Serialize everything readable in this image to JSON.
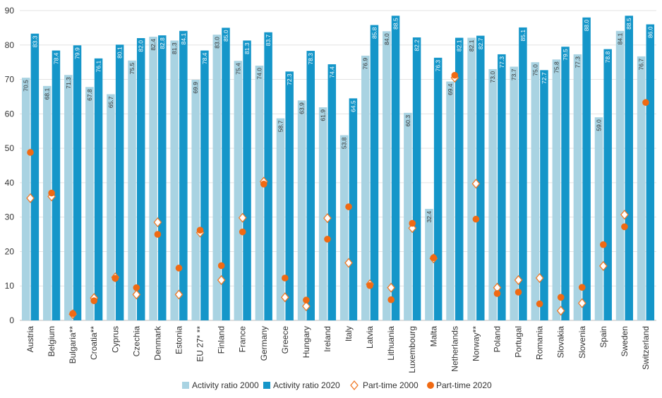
{
  "chart_data": {
    "type": "bar",
    "categories": [
      "Austria",
      "Belgium",
      "Bulgaria**",
      "Croatia**",
      "Cyprus",
      "Czechia",
      "Denmark",
      "Estonia",
      "EU 27* **",
      "Finland",
      "France",
      "Germany",
      "Greece",
      "Hungary",
      "Ireland",
      "Italy",
      "Latvia",
      "Lithuania",
      "Luxembourg",
      "Malta",
      "Netherlands",
      "Norway**",
      "Poland",
      "Portugal",
      "Romania",
      "Slovakia",
      "Slovenia",
      "Spain",
      "Sweden",
      "Switzerland"
    ],
    "series": [
      {
        "name": "Activity ratio 2000",
        "kind": "bar",
        "color": "#a9d3e2",
        "values": [
          70.5,
          68.1,
          71.3,
          67.8,
          65.7,
          75.5,
          82.4,
          81.3,
          69.9,
          83.0,
          75.4,
          74.0,
          58.7,
          63.9,
          61.9,
          53.8,
          76.9,
          84.0,
          60.3,
          32.4,
          69.4,
          82.1,
          73.0,
          73.7,
          75.0,
          75.8,
          77.3,
          59.0,
          84.1,
          76.7
        ],
        "labels": [
          "70.5",
          "68.1",
          "71.3",
          "67.8",
          "65.7",
          "75.5",
          "82.4",
          "81.3",
          "69.9",
          "83.0",
          "75.4",
          "74.0",
          "58.7",
          "63.9",
          "61.9",
          "53.8",
          "76.9",
          "84.0",
          "60.3",
          "32.4",
          "69.4",
          "82.1",
          "73.0",
          "73.7",
          "75.0",
          "75.8",
          "77.3",
          "59.0",
          "84.1",
          "76.7"
        ]
      },
      {
        "name": "Activity ratio 2020",
        "kind": "bar",
        "color": "#1596c9",
        "values": [
          83.3,
          78.4,
          79.9,
          76.1,
          80.1,
          82.0,
          82.8,
          84.1,
          78.4,
          85.0,
          81.3,
          83.7,
          72.3,
          78.3,
          74.4,
          64.5,
          85.8,
          88.5,
          82.2,
          76.3,
          82.1,
          82.7,
          77.3,
          85.1,
          72.7,
          79.5,
          88.0,
          78.8,
          88.5,
          86.0
        ],
        "labels": [
          "83.3",
          "78.4",
          "79.9",
          "76.1",
          "80.1",
          "82.0",
          "82.8",
          "84.1",
          "78.4",
          "85.0",
          "81.3",
          "83.7",
          "72.3",
          "78.3",
          "74.4",
          "64.5",
          "85.8",
          "88.5",
          "82.2",
          "76.3",
          "82.1",
          "82.7",
          "77.3",
          "85.1",
          "72.7",
          "79.5",
          "88.0",
          "78.8",
          "88.5",
          "86.0"
        ]
      },
      {
        "name": "Part-time 2000",
        "kind": "marker",
        "marker": "diamond",
        "color": "#f07a28",
        "values": [
          35.5,
          36.0,
          1.8,
          6.5,
          12.5,
          7.5,
          28.5,
          7.5,
          25.5,
          11.7,
          29.8,
          40.3,
          6.7,
          4.1,
          29.7,
          16.7,
          10.5,
          9.5,
          26.8,
          18.0,
          70.5,
          39.7,
          9.5,
          11.7,
          12.3,
          2.8,
          5.0,
          15.8,
          30.7,
          null
        ]
      },
      {
        "name": "Part-time 2020",
        "kind": "marker",
        "marker": "circle",
        "color": "#f06a13",
        "values": [
          48.8,
          37.0,
          2.0,
          5.7,
          12.2,
          9.5,
          25.0,
          15.2,
          26.2,
          15.9,
          25.7,
          39.6,
          12.3,
          5.9,
          23.6,
          33.0,
          10.1,
          6.0,
          28.2,
          18.2,
          71.2,
          29.4,
          7.8,
          8.2,
          4.8,
          6.7,
          9.6,
          22.0,
          27.2,
          63.3
        ]
      }
    ],
    "ylim": [
      0,
      90
    ],
    "yticks": [
      "0",
      "10",
      "20",
      "30",
      "40",
      "50",
      "60",
      "70",
      "80",
      "90"
    ],
    "grid": true,
    "legend_position": "bottom-center"
  },
  "legend": {
    "items": [
      {
        "label": "Activity ratio 2000"
      },
      {
        "label": "Activity ratio 2020"
      },
      {
        "label": "Part-time 2000"
      },
      {
        "label": "Part-time 2020"
      }
    ]
  }
}
